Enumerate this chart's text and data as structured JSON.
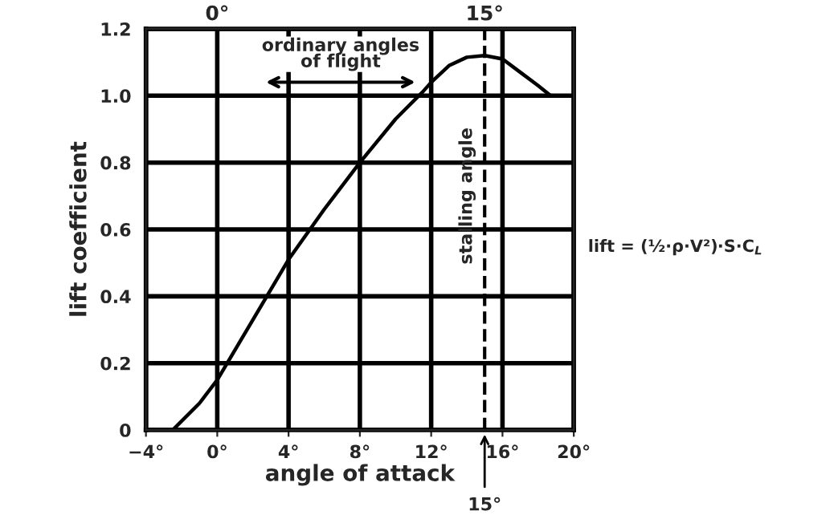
{
  "chart_data": {
    "type": "line",
    "xlabel": "angle of attack",
    "ylabel": "lift coefficient",
    "series": [
      {
        "color": "#000000",
        "x": [
          -2.5,
          -1,
          0,
          1,
          2,
          3,
          4,
          6,
          8,
          10,
          11.5,
          12,
          13,
          14,
          15,
          16,
          17,
          18,
          18.7
        ],
        "values": [
          0,
          0.08,
          0.15,
          0.24,
          0.33,
          0.42,
          0.51,
          0.66,
          0.8,
          0.93,
          1.01,
          1.04,
          1.09,
          1.115,
          1.12,
          1.11,
          1.07,
          1.03,
          1.0
        ]
      }
    ],
    "xlim": [
      -4,
      20
    ],
    "xticks": [
      {
        "value": -4,
        "label": "−4°"
      },
      {
        "value": 0,
        "label": "0°"
      },
      {
        "value": 4,
        "label": "4°"
      },
      {
        "value": 8,
        "label": "8°"
      },
      {
        "value": 12,
        "label": "12°"
      },
      {
        "value": 16,
        "label": "16°"
      },
      {
        "value": 20,
        "label": "20°"
      }
    ],
    "x2lim": [
      -4,
      20
    ],
    "x2ticks": [
      {
        "value": 0,
        "label": "0°"
      },
      {
        "value": 15,
        "label": "15°"
      }
    ],
    "ylim": [
      0,
      1.2
    ],
    "yticks": [
      {
        "value": 0,
        "label": "0"
      },
      {
        "value": 0.2,
        "label": "0.2"
      },
      {
        "value": 0.4,
        "label": "0.4"
      },
      {
        "value": 0.6,
        "label": "0.6"
      },
      {
        "value": 0.8,
        "label": "0.8"
      },
      {
        "value": 1.0,
        "label": "1.0"
      },
      {
        "value": 1.2,
        "label": "1.2"
      }
    ],
    "grid": true,
    "marker": "none",
    "line_style": "solid",
    "ref_lines": [
      {
        "axis": "x",
        "value": 15,
        "label": "stalling angle",
        "line_style": "dashed",
        "color": "#000000"
      }
    ],
    "annotations": [
      {
        "text": "15°",
        "x": 15,
        "y": 0
      },
      "lift = (½·ρ·V²)·S·C$_{L}$",
      "ordinary angles\nof flight"
    ]
  }
}
